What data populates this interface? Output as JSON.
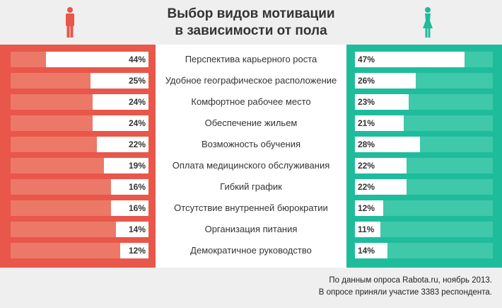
{
  "colors": {
    "men": "#e8574a",
    "women": "#1fbc9c"
  },
  "icons": {
    "left": "man-icon",
    "right": "woman-icon"
  },
  "chart_data": {
    "type": "bar",
    "title": "Выбор видов мотивации\nв зависимости от пола",
    "title_lines": [
      "Выбор видов мотивации",
      "в зависимости от пола"
    ],
    "categories": [
      "Перспектива карьерного роста",
      "Удобное географическое расположение",
      "Комфортное рабочее место",
      "Обеспечение жильем",
      "Возможность обучения",
      "Оплата медицинского обслуживания",
      "Гибкий график",
      "Отсутствие внутренней бюрократии",
      "Организация питания",
      "Демократичное руководство"
    ],
    "series": [
      {
        "values": [
          44,
          25,
          24,
          24,
          22,
          19,
          16,
          16,
          14,
          12
        ]
      },
      {
        "values": [
          47,
          26,
          23,
          21,
          28,
          22,
          22,
          12,
          11,
          14
        ]
      }
    ],
    "unit": "%"
  },
  "footnote": [
    "По данным опроса Rabota.ru, ноябрь 2013.",
    "В опросе приняли участие 3383 респондента."
  ]
}
